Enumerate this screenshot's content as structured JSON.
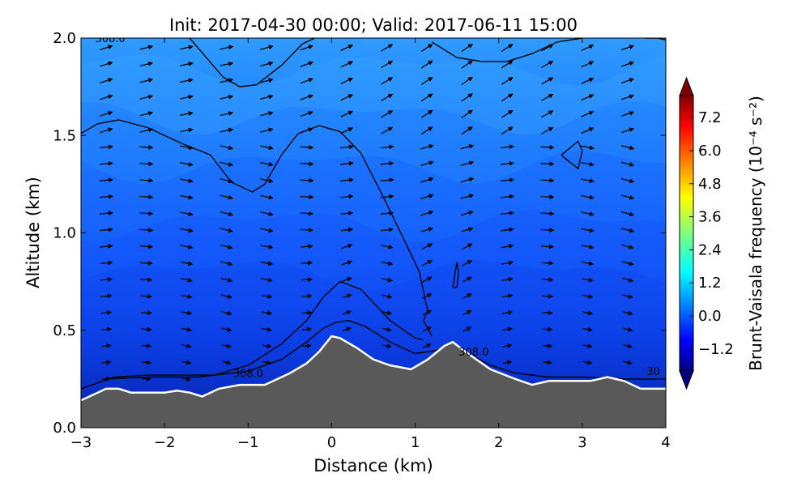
{
  "chart_data": {
    "type": "heatmap",
    "title": "Init: 2017-04-30 00:00; Valid: 2017-06-11 15:00",
    "xlabel": "Distance (km)",
    "ylabel": "Altitude (km)",
    "xlim": [
      -3,
      4
    ],
    "ylim": [
      0,
      2
    ],
    "xticks": [
      -3,
      -2,
      -1,
      0,
      1,
      2,
      3,
      4
    ],
    "yticks": [
      0.0,
      0.5,
      1.0,
      1.5,
      2.0
    ],
    "colorbar": {
      "label": "Brunt-Vaisala frequency (10⁻⁴ s⁻²)",
      "range": [
        -2.0,
        8.0
      ],
      "ticks": [
        -1.2,
        0.0,
        1.2,
        2.4,
        3.6,
        4.8,
        6.0,
        7.2
      ],
      "extend": "both",
      "colormap": "jet"
    },
    "terrain": {
      "x": [
        -3.0,
        -2.8,
        -2.7,
        -2.55,
        -2.4,
        -2.2,
        -2.0,
        -1.85,
        -1.7,
        -1.55,
        -1.35,
        -1.1,
        -0.8,
        -0.5,
        -0.3,
        -0.15,
        0.0,
        0.1,
        0.3,
        0.5,
        0.7,
        0.95,
        1.15,
        1.35,
        1.45,
        1.6,
        1.9,
        2.2,
        2.4,
        2.6,
        2.9,
        3.1,
        3.3,
        3.5,
        3.7,
        4.0
      ],
      "y": [
        0.14,
        0.18,
        0.2,
        0.2,
        0.18,
        0.18,
        0.18,
        0.19,
        0.18,
        0.16,
        0.2,
        0.22,
        0.22,
        0.28,
        0.33,
        0.39,
        0.47,
        0.46,
        0.41,
        0.35,
        0.32,
        0.3,
        0.35,
        0.42,
        0.44,
        0.39,
        0.3,
        0.25,
        0.22,
        0.24,
        0.24,
        0.24,
        0.26,
        0.24,
        0.2,
        0.2
      ],
      "color": "#595959"
    },
    "contours": [
      {
        "label": "308.0",
        "x": [
          -2.7,
          -2.2,
          -1.6,
          -1.0,
          -0.6,
          -0.3,
          -0.1,
          0.05,
          0.2,
          0.4,
          0.7,
          1.0,
          1.3,
          1.45,
          1.6,
          1.9,
          2.2,
          2.6,
          3.0,
          3.5,
          4.0
        ],
        "y": [
          0.25,
          0.26,
          0.26,
          0.29,
          0.35,
          0.44,
          0.51,
          0.54,
          0.55,
          0.52,
          0.44,
          0.38,
          0.4,
          0.43,
          0.39,
          0.32,
          0.28,
          0.26,
          0.26,
          0.25,
          0.25
        ]
      },
      {
        "label": "",
        "x": [
          -3.0,
          -2.6,
          -2.2,
          -1.8,
          -1.4,
          -1.0,
          -0.6,
          -0.3,
          -0.1,
          0.1,
          0.35,
          0.7,
          1.0,
          1.1
        ],
        "y": [
          0.2,
          0.26,
          0.27,
          0.27,
          0.27,
          0.32,
          0.43,
          0.55,
          0.67,
          0.75,
          0.71,
          0.55,
          0.46,
          0.45
        ]
      },
      {
        "label": "",
        "x": [
          -3.0,
          -2.8,
          -2.55,
          -2.2,
          -1.8,
          -1.45,
          -1.2,
          -0.95,
          -0.8,
          -0.6,
          -0.4,
          -0.15,
          0.1,
          0.35,
          0.6,
          0.85,
          1.05,
          1.15,
          1.1,
          1.2
        ],
        "y": [
          1.51,
          1.56,
          1.58,
          1.54,
          1.46,
          1.4,
          1.26,
          1.21,
          1.25,
          1.4,
          1.51,
          1.55,
          1.52,
          1.41,
          1.2,
          0.98,
          0.8,
          0.6,
          0.55,
          0.47
        ]
      },
      {
        "label": "",
        "x": [
          -1.7,
          -1.5,
          -1.3,
          -1.1,
          -0.9,
          -0.6,
          -0.35,
          -0.2
        ],
        "y": [
          2.0,
          1.9,
          1.8,
          1.75,
          1.76,
          1.86,
          1.97,
          2.0
        ]
      },
      {
        "label": "",
        "x": [
          1.2,
          1.5,
          1.8,
          2.1,
          2.4,
          2.7,
          3.0
        ],
        "y": [
          1.98,
          1.9,
          1.88,
          1.88,
          1.92,
          1.98,
          2.0
        ]
      },
      {
        "label": "",
        "x": [
          3.75,
          3.9,
          4.0
        ],
        "y": [
          2.0,
          2.0,
          1.99
        ]
      },
      {
        "label": "",
        "x": [
          2.75,
          2.95,
          3.0,
          2.95,
          2.8,
          2.75
        ],
        "y": [
          1.4,
          1.47,
          1.42,
          1.33,
          1.38,
          1.4
        ]
      },
      {
        "label": "",
        "x": [
          1.45,
          1.5,
          1.52,
          1.5,
          1.45,
          1.45
        ],
        "y": [
          0.72,
          0.85,
          0.8,
          0.72,
          0.72,
          0.72
        ]
      }
    ],
    "contour_labels": [
      {
        "text": "308.0",
        "x": -1.0,
        "y": 0.26
      },
      {
        "text": "308.0",
        "x": 1.7,
        "y": 0.37
      },
      {
        "text": "308.0",
        "x": -2.65,
        "y": 1.98
      },
      {
        "text": "30",
        "x": 3.85,
        "y": 0.27
      }
    ],
    "wind_vectors": {
      "grid_x_step_km": 0.5,
      "grid_y_step_km": 0.1,
      "representation": "quiver arrows, mostly eastward, deflected over terrain"
    }
  }
}
